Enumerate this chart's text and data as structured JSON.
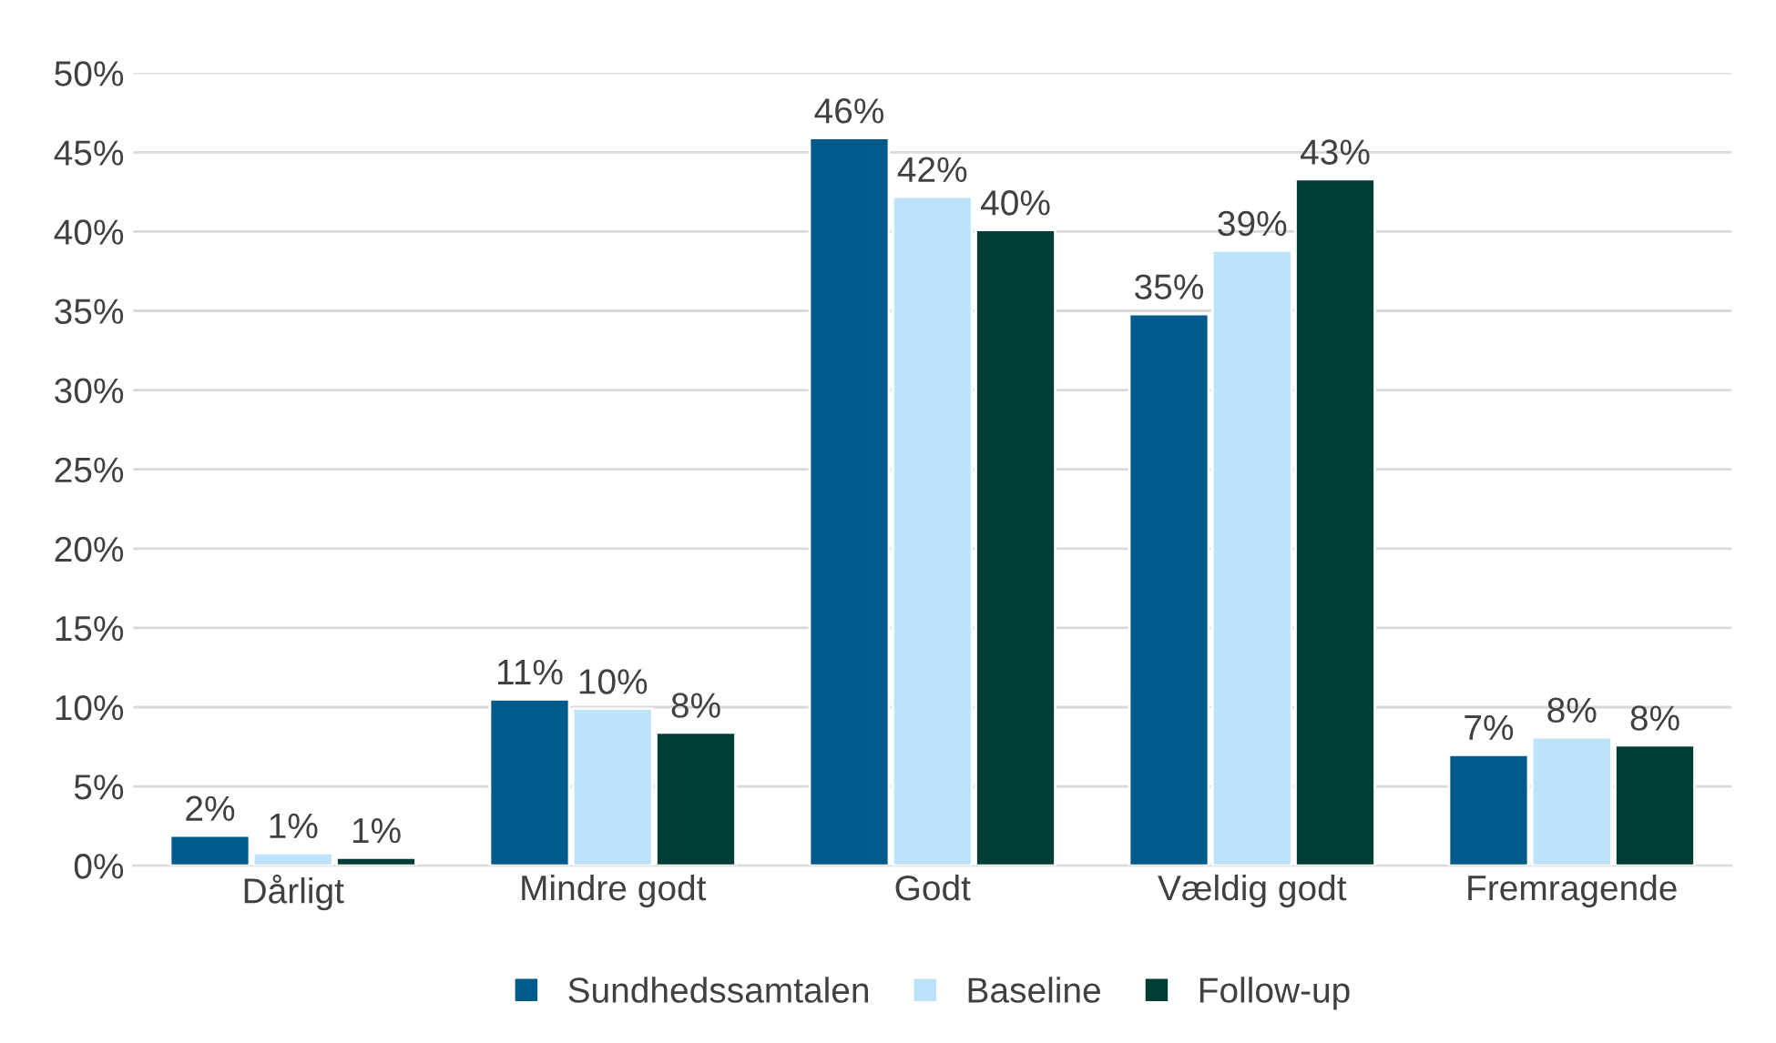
{
  "chart_data": {
    "type": "bar",
    "categories": [
      "Dårligt",
      "Mindre godt",
      "Godt",
      "Vældig godt",
      "Fremragende"
    ],
    "series": [
      {
        "name": "Sundhedssamtalen",
        "color": "#005a8c",
        "values": [
          1.9,
          10.5,
          45.9,
          34.8,
          7.0
        ],
        "value_labels": [
          "2%",
          "11%",
          "46%",
          "35%",
          "7%"
        ]
      },
      {
        "name": "Baseline",
        "color": "#bde3fb",
        "values": [
          0.8,
          9.9,
          42.2,
          38.8,
          8.1
        ],
        "value_labels": [
          "1%",
          "10%",
          "42%",
          "39%",
          "8%"
        ]
      },
      {
        "name": "Follow-up",
        "color": "#003d35",
        "values": [
          0.5,
          8.4,
          40.1,
          43.3,
          7.6
        ],
        "value_labels": [
          "1%",
          "8%",
          "40%",
          "43%",
          "8%"
        ]
      }
    ],
    "ylim": [
      0,
      50
    ],
    "yticks": [
      {
        "value": 0,
        "label": "0%"
      },
      {
        "value": 5,
        "label": "5%"
      },
      {
        "value": 10,
        "label": "10%"
      },
      {
        "value": 15,
        "label": "15%"
      },
      {
        "value": 20,
        "label": "20%"
      },
      {
        "value": 25,
        "label": "25%"
      },
      {
        "value": 30,
        "label": "30%"
      },
      {
        "value": 35,
        "label": "35%"
      },
      {
        "value": 40,
        "label": "40%"
      },
      {
        "value": 45,
        "label": "45%"
      },
      {
        "value": 50,
        "label": "50%"
      }
    ],
    "grid": "y",
    "legend": "bottom"
  }
}
